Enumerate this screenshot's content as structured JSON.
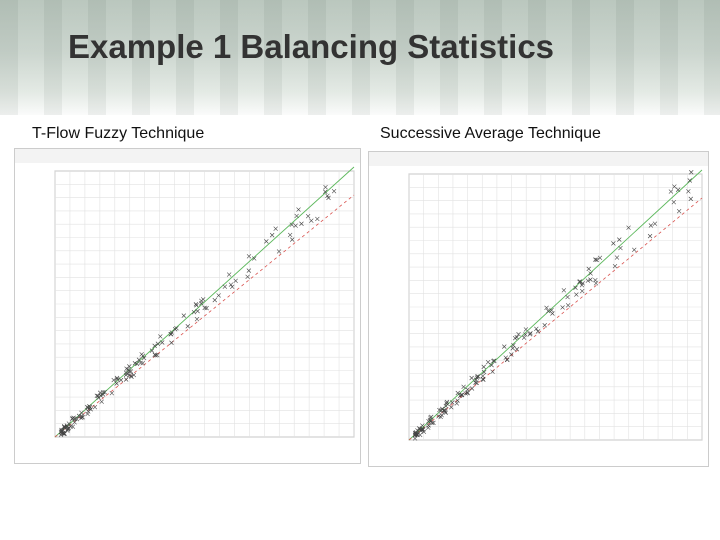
{
  "header": {
    "title": "Example 1 Balancing Statistics"
  },
  "panels": [
    {
      "label": "T-Flow Fuzzy Technique"
    },
    {
      "label": "Successive Average Technique"
    }
  ]
}
